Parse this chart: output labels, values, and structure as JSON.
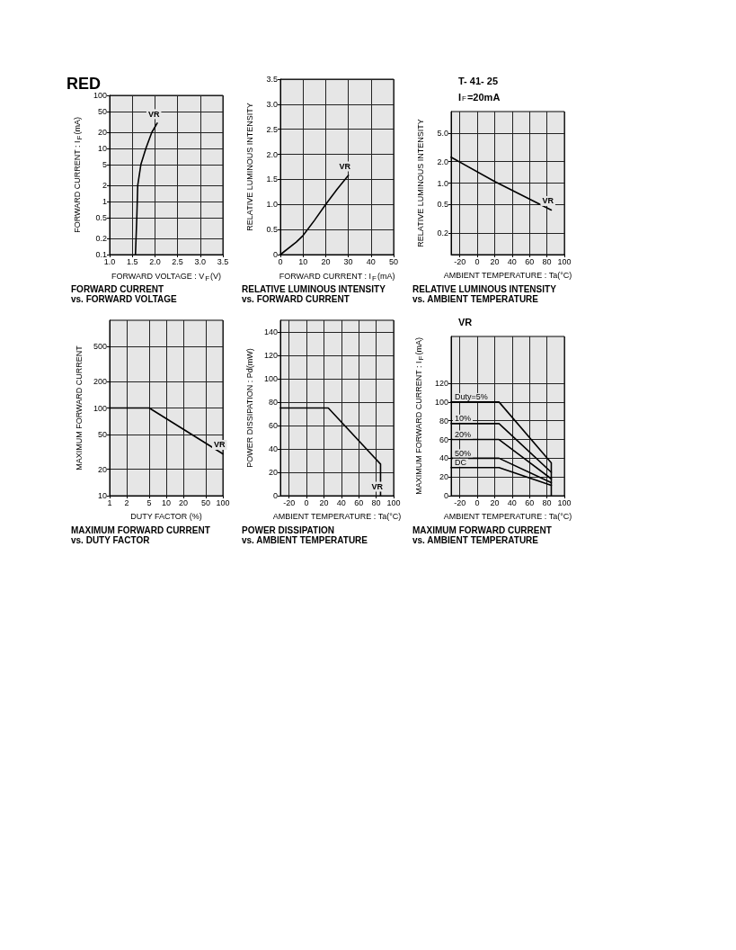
{
  "chart_data": [
    {
      "type": "line",
      "title": "FORWARD CURRENT\nvs. FORWARD VOLTAGE",
      "xlabel": "FORWARD VOLTAGE : V$_{F}$(V)",
      "ylabel": "FORWARD CURRENT : I$_{F}$(mA)",
      "annotations": [
        "RED"
      ],
      "log": "y",
      "grid": true,
      "marker": "none",
      "line_style": "solid",
      "xlim": [
        1,
        3.5
      ],
      "xticks": [
        {
          "value": 1,
          "label": "1.0"
        },
        1.5,
        {
          "value": 2,
          "label": "2.0"
        },
        2.5,
        {
          "value": 3,
          "label": "3.0"
        },
        3.5
      ],
      "ylim": [
        0.1,
        100
      ],
      "yticks": [
        0.1,
        0.2,
        0.5,
        1,
        2,
        5,
        10,
        20,
        50,
        100
      ],
      "series": [
        {
          "name": "VR",
          "color": "#000000",
          "x": [
            1.57,
            1.6,
            1.62,
            1.69,
            1.8,
            1.93,
            2.05
          ],
          "values": [
            0.1,
            0.5,
            2,
            5,
            10,
            20,
            30
          ]
        }
      ]
    },
    {
      "type": "line",
      "title": "RELATIVE LUMINOUS INTENSITY\nvs. FORWARD CURRENT",
      "xlabel": "FORWARD CURRENT : I$_{F}$(mA)",
      "ylabel": "RELATIVE LUMINOUS INTENSITY",
      "grid": true,
      "marker": "none",
      "line_style": "solid",
      "xlim": [
        0,
        50
      ],
      "xticks": [
        0,
        10,
        20,
        30,
        40,
        50
      ],
      "ylim": [
        0,
        3.5
      ],
      "yticks": [
        0,
        0.5,
        {
          "value": 1,
          "label": "1.0"
        },
        1.5,
        {
          "value": 2,
          "label": "2.0"
        },
        2.5,
        {
          "value": 3,
          "label": "3.0"
        },
        3.5
      ],
      "series": [
        {
          "name": "VR",
          "color": "#000000",
          "x": [
            0,
            7,
            10,
            15,
            20,
            25,
            30
          ],
          "values": [
            0,
            0.25,
            0.38,
            0.68,
            1.0,
            1.3,
            1.58
          ]
        }
      ]
    },
    {
      "type": "line",
      "title": "RELATIVE LUMINOUS INTENSITY\nvs. AMBIENT TEMPERATURE",
      "xlabel": "AMBIENT TEMPERATURE : Ta(°C)",
      "ylabel": "RELATIVE LUMINOUS INTENSITY",
      "annotations": [
        "T- 41- 25",
        "I$_{F}$=20mA"
      ],
      "log": "y",
      "grid": true,
      "marker": "none",
      "line_style": "solid",
      "xlim": [
        -30,
        100
      ],
      "xticks": [
        -20,
        0,
        20,
        40,
        60,
        80,
        100
      ],
      "ylim": [
        0.1,
        10
      ],
      "yticks": [
        0.2,
        0.5,
        {
          "value": 1,
          "label": "1.0"
        },
        {
          "value": 2,
          "label": "2.0"
        },
        {
          "value": 5,
          "label": "5.0"
        }
      ],
      "series": [
        {
          "name": "VR",
          "color": "#000000",
          "x": [
            -30,
            20,
            85
          ],
          "values": [
            2.3,
            1.05,
            0.42
          ]
        }
      ]
    },
    {
      "type": "line",
      "title": "MAXIMUM FORWARD CURRENT\nvs. DUTY FACTOR",
      "xlabel": "DUTY FACTOR (%)",
      "ylabel": "MAXIMUM FORWARD CURRENT",
      "log": "xy",
      "grid": true,
      "marker": "none",
      "line_style": "solid",
      "xlim": [
        1,
        100
      ],
      "xticks": [
        1,
        2,
        5,
        10,
        20,
        50,
        100
      ],
      "ylim": [
        10,
        1000
      ],
      "yticks": [
        10,
        20,
        50,
        100,
        200,
        500
      ],
      "series": [
        {
          "name": "VR",
          "color": "#000000",
          "x": [
            1,
            5,
            100
          ],
          "values": [
            100,
            100,
            30
          ]
        }
      ]
    },
    {
      "type": "line",
      "title": "POWER DISSIPATION\nvs. AMBIENT TEMPERATURE",
      "xlabel": "AMBIENT TEMPERATURE : Ta(°C)",
      "ylabel": "POWER DISSIPATION : Pd(mW)",
      "grid": true,
      "marker": "none",
      "line_style": "solid",
      "xlim": [
        -30,
        100
      ],
      "xticks": [
        -20,
        0,
        20,
        40,
        60,
        80,
        100
      ],
      "ylim": [
        0,
        150
      ],
      "yticks": [
        0,
        20,
        40,
        60,
        80,
        100,
        120,
        140
      ],
      "series": [
        {
          "name": "VR",
          "color": "#000000",
          "x": [
            -30,
            25,
            85,
            85
          ],
          "values": [
            75,
            75,
            27,
            0
          ]
        }
      ]
    },
    {
      "type": "line",
      "title": "MAXIMUM FORWARD CURRENT\nvs. AMBIENT TEMPERATURE",
      "xlabel": "AMBIENT TEMPERATURE : Ta(°C)",
      "ylabel": "MAXIMUM FORWARD CURRENT : I$_{F}$(mA)",
      "annotations": [
        "VR"
      ],
      "grid": true,
      "marker": "none",
      "line_style": "solid",
      "xlim": [
        -30,
        100
      ],
      "xticks": [
        -20,
        0,
        20,
        40,
        60,
        80,
        100
      ],
      "ylim": [
        0,
        170
      ],
      "yticks": [
        0,
        20,
        40,
        60,
        80,
        100,
        120
      ],
      "series": [
        {
          "name": "Duty=5%",
          "color": "#000000",
          "x": [
            -30,
            25,
            85,
            85
          ],
          "values": [
            100,
            100,
            35,
            0
          ]
        },
        {
          "name": "10%",
          "color": "#000000",
          "x": [
            -30,
            25,
            85
          ],
          "values": [
            77,
            77,
            25
          ]
        },
        {
          "name": "20%",
          "color": "#000000",
          "x": [
            -30,
            25,
            85
          ],
          "values": [
            60,
            60,
            18
          ]
        },
        {
          "name": "50%",
          "color": "#000000",
          "x": [
            -30,
            25,
            85
          ],
          "values": [
            40,
            40,
            14
          ]
        },
        {
          "name": "DC",
          "color": "#000000",
          "x": [
            -30,
            25,
            85
          ],
          "values": [
            30,
            30,
            11
          ]
        }
      ]
    }
  ]
}
